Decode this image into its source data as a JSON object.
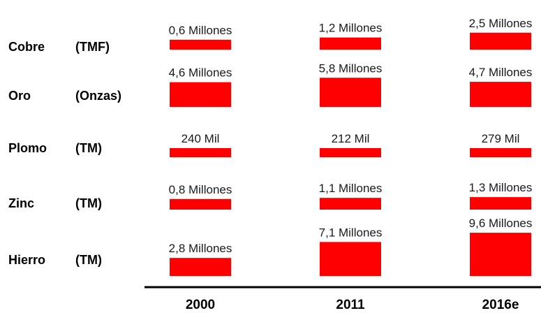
{
  "chart_data": {
    "type": "bar",
    "title": "",
    "categories": [
      "2000",
      "2011",
      "2016e"
    ],
    "bar_color": "#ff0000",
    "axis_color": "#000000",
    "rows": [
      {
        "metal": "Cobre",
        "unit": "(TMF)",
        "values": [
          0.6,
          1.2,
          2.5
        ],
        "labels": [
          "0,6 Millones",
          "1,2 Millones",
          "2,5 Millones"
        ]
      },
      {
        "metal": "Oro",
        "unit": "(Onzas)",
        "values": [
          4.6,
          5.8,
          4.7
        ],
        "labels": [
          "4,6 Millones",
          "5,8 Millones",
          "4,7 Millones"
        ]
      },
      {
        "metal": "Plomo",
        "unit": "(TM)",
        "values": [
          0.24,
          0.212,
          0.279
        ],
        "labels": [
          "240 Mil",
          "212 Mil",
          "279 Mil"
        ]
      },
      {
        "metal": "Zinc",
        "unit": "(TM)",
        "values": [
          0.8,
          1.1,
          1.3
        ],
        "labels": [
          "0,8 Millones",
          "1,1 Millones",
          "1,3 Millones"
        ]
      },
      {
        "metal": "Hierro",
        "unit": "(TM)",
        "values": [
          2.8,
          7.1,
          9.6
        ],
        "labels": [
          "2,8 Millones",
          "7,1 Millones",
          "9,6 Millones"
        ]
      }
    ]
  }
}
